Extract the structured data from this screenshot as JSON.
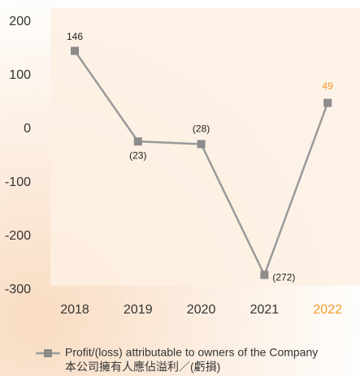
{
  "chart_data": {
    "type": "line",
    "categories": [
      "2018",
      "2019",
      "2020",
      "2021",
      "2022"
    ],
    "category_colors": [
      "#333333",
      "#333333",
      "#333333",
      "#333333",
      "#f39a2b"
    ],
    "series": [
      {
        "name": "Profit/(loss) attributable to owners of the Company",
        "name_zh": "本公司擁有人應佔溢利／(虧損)",
        "color": "#9a9a9a",
        "marker_color": "#8c8c8c",
        "values": [
          146,
          -23,
          -28,
          -272,
          49
        ],
        "value_labels": [
          "146",
          "(23)",
          "(28)",
          "(272)",
          "49"
        ],
        "value_label_colors": [
          "#222222",
          "#222222",
          "#222222",
          "#222222",
          "#f39a2b"
        ]
      }
    ],
    "ylim": [
      -300,
      200
    ],
    "yticks": [
      -300,
      -200,
      -100,
      0,
      100,
      200
    ],
    "grid": false,
    "legend": "bottom"
  }
}
